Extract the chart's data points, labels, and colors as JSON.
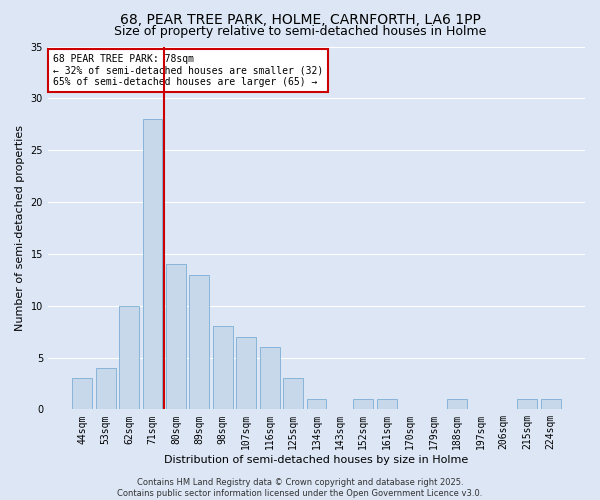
{
  "title1": "68, PEAR TREE PARK, HOLME, CARNFORTH, LA6 1PP",
  "title2": "Size of property relative to semi-detached houses in Holme",
  "xlabel": "Distribution of semi-detached houses by size in Holme",
  "ylabel": "Number of semi-detached properties",
  "categories": [
    "44sqm",
    "53sqm",
    "62sqm",
    "71sqm",
    "80sqm",
    "89sqm",
    "98sqm",
    "107sqm",
    "116sqm",
    "125sqm",
    "134sqm",
    "143sqm",
    "152sqm",
    "161sqm",
    "170sqm",
    "179sqm",
    "188sqm",
    "197sqm",
    "206sqm",
    "215sqm",
    "224sqm"
  ],
  "values": [
    3,
    4,
    10,
    28,
    14,
    13,
    8,
    7,
    6,
    3,
    1,
    0,
    1,
    1,
    0,
    0,
    1,
    0,
    0,
    1,
    1
  ],
  "bar_color": "#c8d8eb",
  "bar_edge_color": "#7aaed4",
  "vline_color": "#cc0000",
  "annotation_text": "68 PEAR TREE PARK: 78sqm\n← 32% of semi-detached houses are smaller (32)\n65% of semi-detached houses are larger (65) →",
  "annotation_box_edge_color": "#cc0000",
  "ylim": [
    0,
    35
  ],
  "yticks": [
    0,
    5,
    10,
    15,
    20,
    25,
    30,
    35
  ],
  "background_color": "#dce6f5",
  "plot_bg_color": "#dce6f5",
  "footer": "Contains HM Land Registry data © Crown copyright and database right 2025.\nContains public sector information licensed under the Open Government Licence v3.0.",
  "title_fontsize": 10,
  "subtitle_fontsize": 9,
  "axis_label_fontsize": 8,
  "tick_fontsize": 7,
  "footer_fontsize": 6
}
